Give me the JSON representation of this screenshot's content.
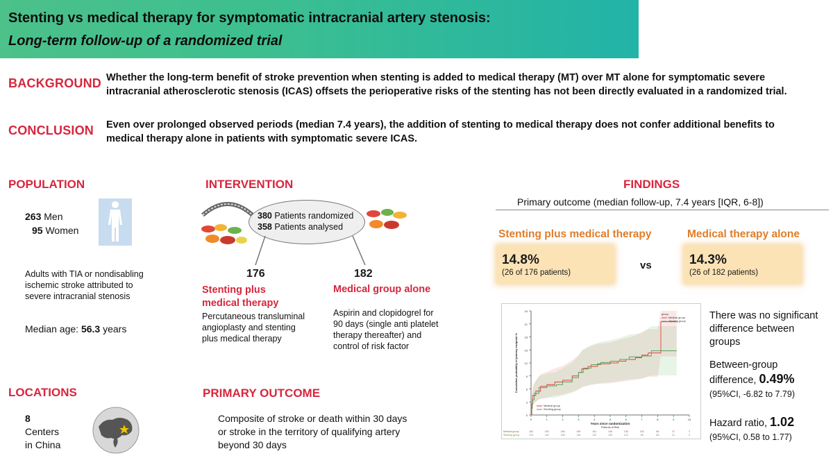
{
  "banner": {
    "title": "Stenting vs medical therapy for symptomatic intracranial artery stenosis:",
    "subtitle": "Long-term follow-up of a randomized trial"
  },
  "background": {
    "label": "BACKGROUND",
    "line1": "Whether the long-term benefit of stroke prevention when stenting is added to medical therapy (MT) over MT alone for symptomatic severe",
    "line2": "intracranial atherosclerotic stenosis (ICAS) offsets the perioperative risks of the stenting has not been directly evaluated in a randomized trial."
  },
  "conclusion": {
    "label": "CONCLUSION",
    "line1": "Even over prolonged observed periods (median 7.4 years), the addition of stenting to medical therapy does not confer additional benefits to",
    "line2": "medical therapy alone in patients with symptomatic severe ICAS."
  },
  "population": {
    "label": "POPULATION",
    "men_count": "263",
    "men_label": "Men",
    "women_count": "95",
    "women_label": "Women",
    "desc_line1": "Adults with TIA or nondisabling",
    "desc_line2": "ischemic stroke attributed to",
    "desc_line3": "severe intracranial stenosis",
    "median_age_label": "Median age:",
    "median_age_value": "56.3",
    "median_age_unit": "years"
  },
  "intervention": {
    "label": "INTERVENTION",
    "randomized_count": "380",
    "randomized_label": "Patients randomized",
    "analysed_count": "358",
    "analysed_label": "Patients analysed",
    "stent_n": "176",
    "stent_title_line1": "Stenting plus",
    "stent_title_line2": "medical therapy",
    "stent_desc_line1": "Percutaneous transluminal",
    "stent_desc_line2": "angioplasty and stenting",
    "stent_desc_line3": "plus medical therapy",
    "med_n": "182",
    "med_title": "Medical group alone",
    "med_desc_line1": "Aspirin and clopidogrel for",
    "med_desc_line2": "90 days (single anti platelet",
    "med_desc_line3": "therapy thereafter) and",
    "med_desc_line4": "control of risk factor"
  },
  "findings": {
    "label": "FINDINGS",
    "primary_outcome_line": "Primary outcome (median follow-up, 7.4 years [IQR, 6-8])",
    "stent_label": "Stenting plus medical therapy",
    "stent_pct": "14.8%",
    "stent_detail": "(26 of 176 patients)",
    "vs": "vs",
    "med_label": "Medical therapy alone",
    "med_pct": "14.3%",
    "med_detail": "(26 of 182 patients)",
    "no_sig_line1": "There was no significant",
    "no_sig_line2": "difference between",
    "no_sig_line3": "groups",
    "diff_label_line1": "Between-group",
    "diff_label_line2": "difference,",
    "diff_value": "0.49%",
    "diff_ci": "(95%CI, -6.82 to 7.79)",
    "hr_label": "Hazard ratio,",
    "hr_value": "1.02",
    "hr_ci": "(95%CI, 0.58 to 1.77)"
  },
  "locations": {
    "label": "LOCATIONS",
    "count": "8",
    "line1": "Centers",
    "line2": "in China"
  },
  "primary_outcome": {
    "label": "PRIMARY OUTCOME",
    "line1": "Composite of stroke or death within 30 days",
    "line2": "or stroke in the territory of qualifying artery",
    "line3": "beyond 30 days"
  },
  "colors": {
    "accent_red": "#d7263d",
    "accent_orange": "#e07d2a",
    "banner_green": "#3dbf8f",
    "box_fill": "#fbe3b6"
  },
  "chart_data": {
    "type": "line",
    "title": "",
    "xlabel": "Years since randomization",
    "ylabel": "Cumulative probability of primary endpoint %",
    "xlim": [
      0,
      10
    ],
    "ylim": [
      0,
      24
    ],
    "x_ticks": [
      "0",
      "1",
      "2",
      "3",
      "4",
      "5",
      "6",
      "7",
      "8",
      "9",
      "10"
    ],
    "y_ticks": [
      "0",
      "3",
      "6",
      "9",
      "12",
      "15",
      "18",
      "21",
      "24"
    ],
    "legend_title": "group",
    "legend_placement": "top-right",
    "series": [
      {
        "name": "Medical group",
        "color": "#d94040",
        "points": [
          [
            0,
            0
          ],
          [
            0.05,
            2.5
          ],
          [
            0.1,
            4.5
          ],
          [
            0.3,
            5.5
          ],
          [
            0.6,
            6.6
          ],
          [
            1.0,
            7.0
          ],
          [
            1.5,
            7.6
          ],
          [
            2.0,
            8.0
          ],
          [
            2.6,
            9.0
          ],
          [
            3.0,
            9.8
          ],
          [
            3.2,
            10.6
          ],
          [
            3.6,
            11.2
          ],
          [
            4.2,
            11.8
          ],
          [
            5.0,
            12.0
          ],
          [
            5.5,
            12.4
          ],
          [
            6.0,
            12.8
          ],
          [
            6.6,
            13.2
          ],
          [
            7.0,
            13.8
          ],
          [
            7.4,
            14.3
          ],
          [
            8.0,
            14.3
          ],
          [
            8.2,
            21.5
          ],
          [
            9.2,
            21.5
          ]
        ]
      },
      {
        "name": "Stenting group",
        "color": "#5aa05a",
        "points": [
          [
            0,
            0
          ],
          [
            0.03,
            1.5
          ],
          [
            0.08,
            3.5
          ],
          [
            0.2,
            5.0
          ],
          [
            0.5,
            6.3
          ],
          [
            1.0,
            6.7
          ],
          [
            1.6,
            7.0
          ],
          [
            2.0,
            7.6
          ],
          [
            2.6,
            8.6
          ],
          [
            3.0,
            9.8
          ],
          [
            3.3,
            10.8
          ],
          [
            3.8,
            11.6
          ],
          [
            4.4,
            12.1
          ],
          [
            5.0,
            12.4
          ],
          [
            5.6,
            12.8
          ],
          [
            6.2,
            13.4
          ],
          [
            7.0,
            13.6
          ],
          [
            7.6,
            14.8
          ],
          [
            8.0,
            14.8
          ],
          [
            9.0,
            14.8
          ],
          [
            9.2,
            14.8
          ]
        ]
      }
    ],
    "risk_table_title": "Patients at Risk",
    "risk_table": [
      {
        "name": "Medical group",
        "values": [
          "182",
          "182",
          "180",
          "165",
          "161",
          "148",
          "136",
          "118",
          "86",
          "37",
          "3"
        ]
      },
      {
        "name": "Stenting group",
        "values": [
          "176",
          "162",
          "158",
          "146",
          "142",
          "135",
          "124",
          "98",
          "68",
          "31",
          "3"
        ]
      }
    ]
  }
}
